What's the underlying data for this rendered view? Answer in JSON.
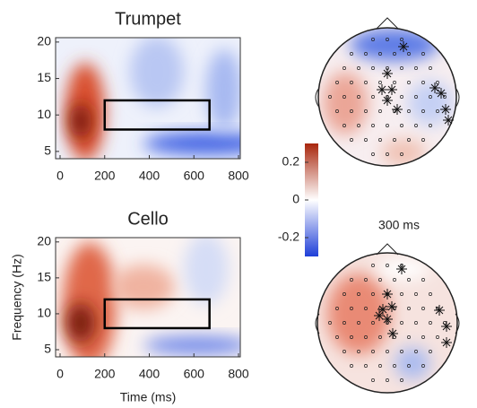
{
  "chart_data": [
    {
      "type": "heatmap",
      "title": "Trumpet",
      "xlim": [
        0,
        800
      ],
      "xticks": [
        0,
        200,
        400,
        600,
        800
      ],
      "ylim": [
        4,
        20.6
      ],
      "yticks": [
        5,
        10,
        15,
        20
      ],
      "roi": {
        "x": [
          200,
          670
        ],
        "y": [
          8,
          12
        ]
      }
    },
    {
      "type": "heatmap",
      "title": "Cello",
      "xlabel": "Time (ms)",
      "ylabel": "Frequency (Hz)",
      "xlim": [
        0,
        800
      ],
      "xticks": [
        0,
        200,
        400,
        600,
        800
      ],
      "ylim": [
        4,
        20.6
      ],
      "yticks": [
        5,
        10,
        15,
        20
      ],
      "roi": {
        "x": [
          200,
          670
        ],
        "y": [
          8,
          12
        ]
      }
    }
  ],
  "colorbar": {
    "lim": [
      -0.3,
      0.3
    ],
    "ticks": [
      -0.2,
      0,
      0.2
    ]
  },
  "topo_label": "300 ms"
}
